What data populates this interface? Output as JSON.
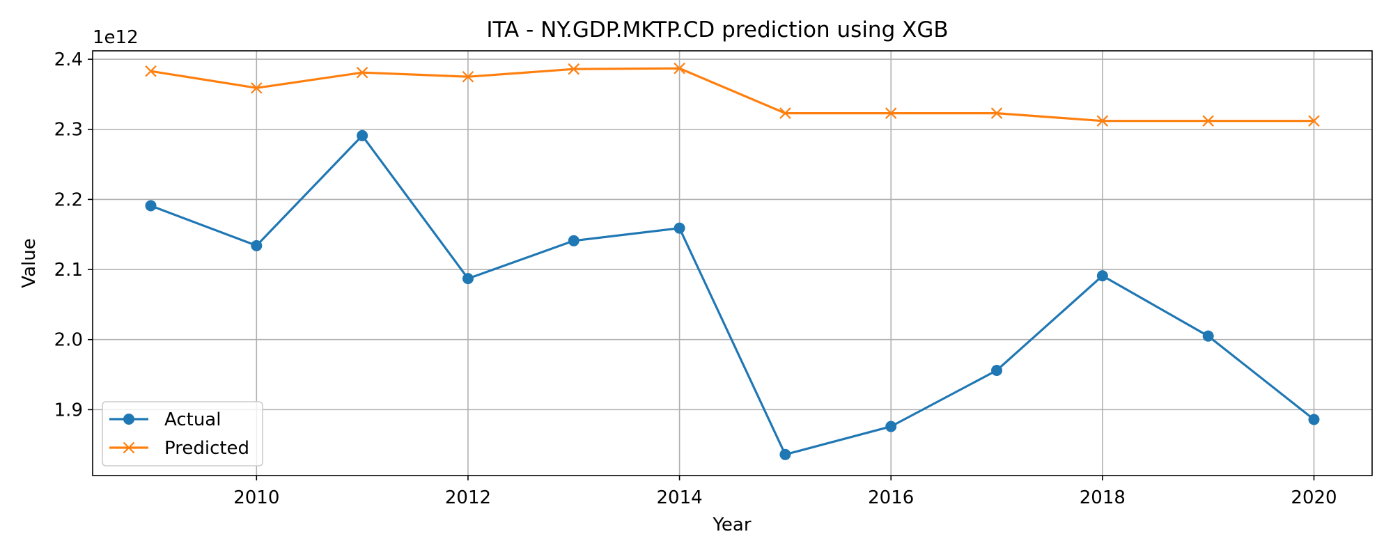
{
  "chart_data": {
    "type": "line",
    "title": "ITA - NY.GDP.MKTP.CD prediction using XGB",
    "xlabel": "Year",
    "ylabel": "Value",
    "y_scale_label": "1e12",
    "xlim": [
      2008.45,
      2020.55
    ],
    "ylim": [
      1.806,
      2.412
    ],
    "x_ticks": [
      2010,
      2012,
      2014,
      2016,
      2018,
      2020
    ],
    "y_ticks": [
      1.9,
      2.0,
      2.1,
      2.2,
      2.3,
      2.4
    ],
    "y_tick_labels": [
      "1.9",
      "2.0",
      "2.1",
      "2.2",
      "2.3",
      "2.4"
    ],
    "grid": true,
    "legend_position": "lower left",
    "x": [
      2009,
      2010,
      2011,
      2012,
      2013,
      2014,
      2015,
      2016,
      2017,
      2018,
      2019,
      2020
    ],
    "series": [
      {
        "name": "Actual",
        "color": "#1f77b4",
        "marker": "circle",
        "values": [
          2.191,
          2.134,
          2.291,
          2.087,
          2.141,
          2.159,
          1.836,
          1.876,
          1.956,
          2.091,
          2.005,
          1.886
        ]
      },
      {
        "name": "Predicted",
        "color": "#ff7f0e",
        "marker": "x",
        "values": [
          2.383,
          2.359,
          2.381,
          2.375,
          2.386,
          2.387,
          2.323,
          2.323,
          2.323,
          2.312,
          2.312,
          2.312
        ]
      }
    ]
  }
}
